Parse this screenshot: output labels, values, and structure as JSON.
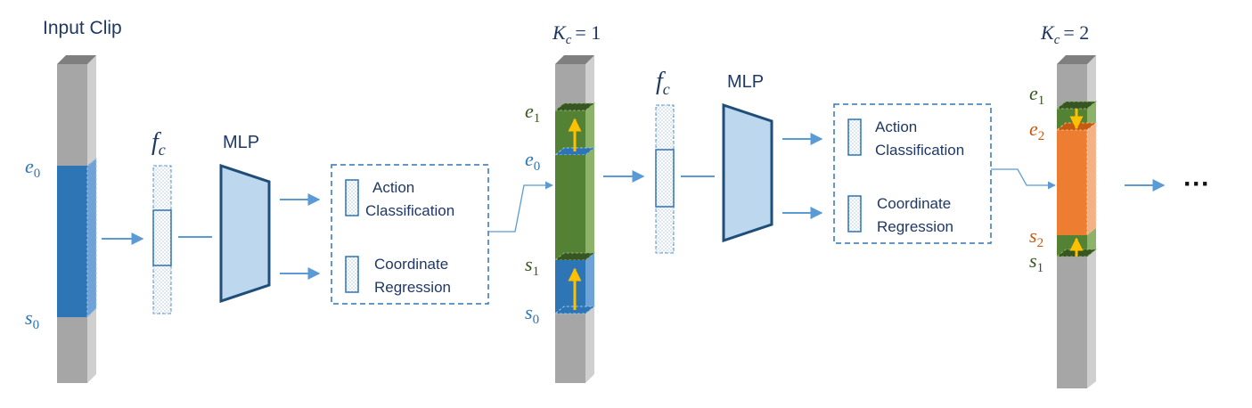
{
  "title": "Input Clip",
  "stages": [
    {
      "kc_label": "K",
      "kc_sub": "c",
      "kc_value": "= 1"
    },
    {
      "kc_label": "K",
      "kc_sub": "c",
      "kc_value": "= 2"
    }
  ],
  "feature": {
    "symbol": "f",
    "sub": "c"
  },
  "mlp_label": "MLP",
  "heads": {
    "action_line1": "Action",
    "action_line2": "Classification",
    "coord_line1": "Coordinate",
    "coord_line2": "Regression"
  },
  "markers": {
    "e0": {
      "base": "e",
      "sub": "0"
    },
    "s0": {
      "base": "s",
      "sub": "0"
    },
    "e1": {
      "base": "e",
      "sub": "1"
    },
    "s1": {
      "base": "s",
      "sub": "1"
    },
    "e2": {
      "base": "e",
      "sub": "2"
    },
    "s2": {
      "base": "s",
      "sub": "2"
    }
  },
  "ellipsis": "···",
  "colors": {
    "gray": "#a6a6a6",
    "gray_dark": "#7f7f7f",
    "gray_light": "#cfcfcf",
    "blue": "#2e75b6",
    "blue_light": "#6fa2d6",
    "green": "#548235",
    "green_light": "#8db36b",
    "orange": "#ed7d31",
    "orange_light": "#f4b183",
    "mlp_fill": "#bdd7ee",
    "mlp_stroke": "#1f4e79",
    "arrow": "#5b9bd5",
    "label_blue": "#2e75b6",
    "label_green": "#375623",
    "label_orange": "#c55a11",
    "yellow": "#ffc000"
  }
}
